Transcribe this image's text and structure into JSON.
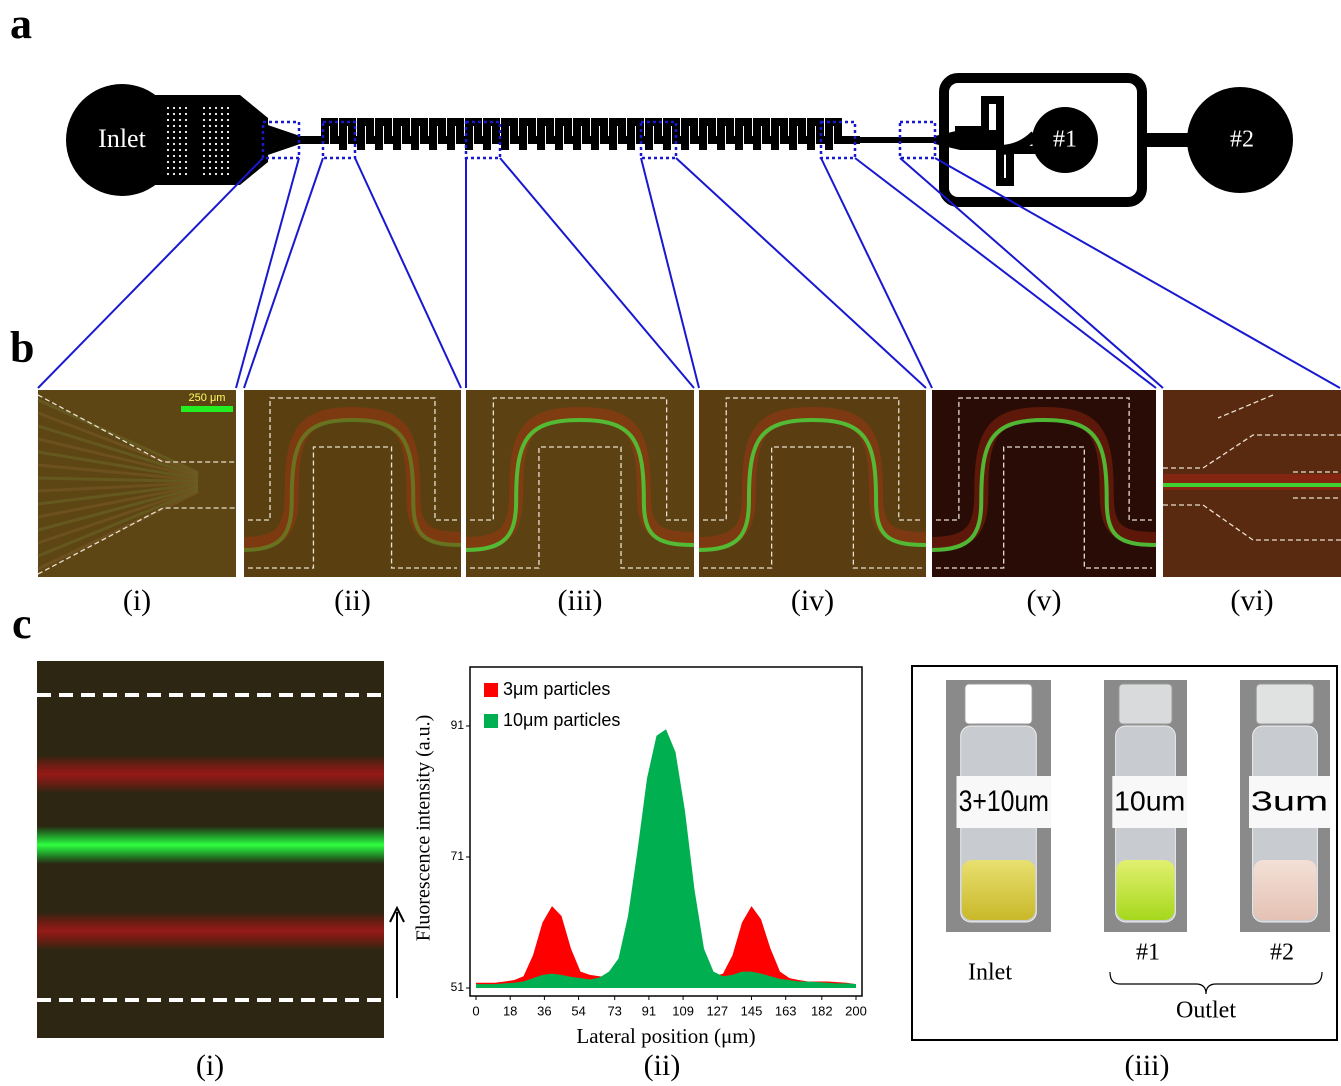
{
  "panel_labels": [
    "a",
    "b",
    "c"
  ],
  "diagram": {
    "inlet": "Inlet",
    "outlet1": "#1",
    "outlet2": "#2"
  },
  "micrographs": {
    "scale_bar": "250 μm",
    "labels": [
      "(i)",
      "(ii)",
      "(iii)",
      "(iv)",
      "(v)",
      "(vi)"
    ]
  },
  "panel_c_labels": [
    "(i)",
    "(ii)",
    "(iii)"
  ],
  "chart_data": {
    "type": "area",
    "xlabel": "Lateral position (μm)",
    "ylabel": "Fluorescence intensity (a.u.)",
    "x": [
      0,
      5,
      10,
      15,
      20,
      25,
      30,
      35,
      40,
      45,
      50,
      55,
      60,
      65,
      70,
      75,
      80,
      85,
      90,
      95,
      100,
      105,
      110,
      115,
      120,
      125,
      130,
      135,
      140,
      145,
      150,
      155,
      160,
      165,
      170,
      175,
      180,
      185,
      190,
      195,
      200
    ],
    "series": [
      {
        "name": "3μm particles",
        "color": "#ff0000",
        "values": [
          51.8,
          51.8,
          51.8,
          52,
          52.2,
          52.8,
          56,
          61,
          63.5,
          62,
          57,
          53.5,
          53,
          52.8,
          52.6,
          52.5,
          52.5,
          52.5,
          52.5,
          52.5,
          52.5,
          52.5,
          52.5,
          52.5,
          52.6,
          52.8,
          53.2,
          56,
          61,
          63.5,
          61.5,
          57,
          53.5,
          52.5,
          52.2,
          52,
          52,
          52,
          51.9,
          51.8,
          51.6
        ]
      },
      {
        "name": "10μm particles",
        "color": "#00b050",
        "values": [
          51.6,
          51.6,
          51.6,
          51.7,
          51.8,
          52,
          52.5,
          53,
          53.2,
          53,
          52.7,
          52.5,
          52.3,
          52.6,
          53.5,
          55.5,
          62,
          72,
          83,
          89.5,
          90.5,
          87,
          78,
          66,
          57,
          53.5,
          52.8,
          53,
          53.5,
          53.5,
          53.2,
          52.8,
          52.4,
          52.2,
          52,
          52,
          51.9,
          51.8,
          51.7,
          51.7,
          51.6
        ]
      }
    ],
    "xlim": [
      0,
      200
    ],
    "ylim": [
      51,
      100
    ],
    "xticks": [
      0,
      18,
      36,
      54,
      73,
      91,
      109,
      127,
      145,
      163,
      182,
      200
    ],
    "yticks": [
      51,
      71,
      91
    ],
    "legend": "upper left"
  },
  "photo": {
    "vial_labels": [
      "3+10um",
      "10um",
      "3um"
    ],
    "captions": [
      "Inlet",
      "#1",
      "#2"
    ],
    "outlet": "Outlet"
  }
}
